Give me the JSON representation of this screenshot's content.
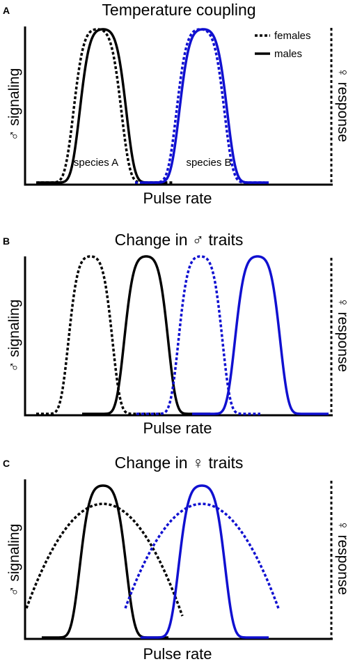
{
  "colors": {
    "species_a": "#000000",
    "species_b": "#1010d0"
  },
  "legend": {
    "females": "females",
    "males": "males"
  },
  "chart_data": [
    {
      "letter": "A",
      "title": "Temperature coupling",
      "xlabel": "Pulse rate",
      "ylabel_left": "♂ signaling",
      "ylabel_right": "♀ response",
      "type": "line",
      "annotations": [
        "species A",
        "species B"
      ],
      "series": [
        {
          "name": "species A females",
          "species": "a",
          "style": "dotted",
          "kind": "bell",
          "center": 140,
          "width": 37,
          "peak": 1.0,
          "x_start": 52,
          "x_end": 248
        },
        {
          "name": "species A males",
          "species": "a",
          "style": "solid",
          "kind": "bell",
          "center": 148,
          "width": 36,
          "peak": 1.0,
          "x_start": 54,
          "x_end": 240
        },
        {
          "name": "species B females",
          "species": "b",
          "style": "dotted",
          "kind": "bell",
          "center": 288,
          "width": 37,
          "peak": 1.0,
          "x_start": 194,
          "x_end": 380
        },
        {
          "name": "species B males",
          "species": "b",
          "style": "solid",
          "kind": "bell",
          "center": 292,
          "width": 37,
          "peak": 1.0,
          "x_start": 204,
          "x_end": 386
        }
      ]
    },
    {
      "letter": "B",
      "title": "Change in ♂ traits",
      "xlabel": "Pulse rate",
      "ylabel_left": "♂ signaling",
      "ylabel_right": "♀ response",
      "type": "line",
      "series": [
        {
          "name": "species A females",
          "species": "a",
          "style": "dotted",
          "kind": "bell",
          "center": 130,
          "width": 34,
          "peak": 1.0,
          "x_start": 52,
          "x_end": 232
        },
        {
          "name": "species A males",
          "species": "a",
          "style": "solid",
          "kind": "bell",
          "center": 210,
          "width": 34,
          "peak": 1.0,
          "x_start": 118,
          "x_end": 302
        },
        {
          "name": "species B females",
          "species": "b",
          "style": "dotted",
          "kind": "bell",
          "center": 288,
          "width": 34,
          "peak": 1.0,
          "x_start": 196,
          "x_end": 374
        },
        {
          "name": "species B males",
          "species": "b",
          "style": "solid",
          "kind": "bell",
          "center": 370,
          "width": 35,
          "peak": 1.0,
          "x_start": 276,
          "x_end": 472
        }
      ]
    },
    {
      "letter": "C",
      "title": "Change in ♀ traits",
      "xlabel": "Pulse rate",
      "ylabel_left": "♂ signaling",
      "ylabel_right": "♀ response",
      "type": "line",
      "series": [
        {
          "name": "species A females",
          "species": "a",
          "style": "dotted",
          "kind": "flat",
          "center": 148,
          "width": 88,
          "peak": 0.88,
          "x_start": 38,
          "x_end": 262
        },
        {
          "name": "species A males",
          "species": "a",
          "style": "solid",
          "kind": "bell",
          "center": 148,
          "width": 36,
          "peak": 1.0,
          "x_start": 60,
          "x_end": 242
        },
        {
          "name": "species B females",
          "species": "b",
          "style": "dotted",
          "kind": "flat",
          "center": 290,
          "width": 88,
          "peak": 0.88,
          "x_start": 180,
          "x_end": 400
        },
        {
          "name": "species B males",
          "species": "b",
          "style": "solid",
          "kind": "bell",
          "center": 290,
          "width": 36,
          "peak": 1.0,
          "x_start": 202,
          "x_end": 386
        }
      ]
    }
  ]
}
